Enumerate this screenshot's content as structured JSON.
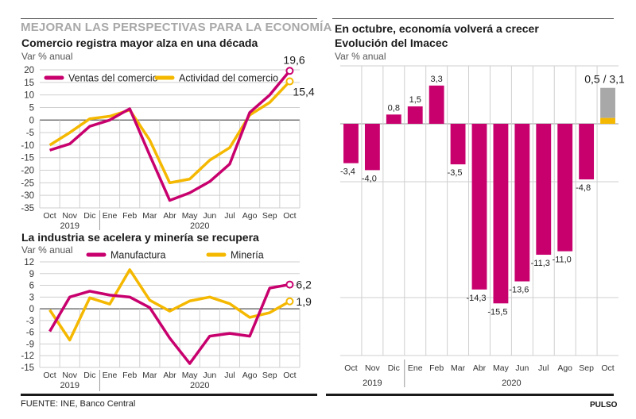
{
  "header": {
    "supertitle": "MEJORAN LAS PERSPECTIVAS PARA LA ECONOMÍA"
  },
  "footer": {
    "source": "FUENTE: INE, Banco Central",
    "brand": "PULSO"
  },
  "colors": {
    "magenta": "#c8006e",
    "yellow": "#f5b800",
    "gray": "#a8a8a8",
    "grid": "#cfcfcf"
  },
  "chart_data": [
    {
      "id": "comercio",
      "type": "line",
      "title": "Comercio registra mayor alza en una década",
      "ylabel": "Var % anual",
      "xlabel": "",
      "categories": [
        "Oct",
        "Nov",
        "Dic",
        "Ene",
        "Feb",
        "Mar",
        "Abr",
        "May",
        "Jun",
        "Jul",
        "Ago",
        "Sep",
        "Oct"
      ],
      "year_labels": [
        {
          "label": "2019",
          "span": [
            0,
            2
          ]
        },
        {
          "label": "2020",
          "span": [
            3,
            12
          ]
        }
      ],
      "ylim": [
        -35,
        20
      ],
      "yticks": [
        20,
        15,
        10,
        5,
        0,
        -5,
        -10,
        -15,
        -20,
        -25,
        -30,
        -35
      ],
      "grid": true,
      "legend": "top-left",
      "series": [
        {
          "name": "Ventas del comercio",
          "color": "#c8006e",
          "values": [
            -12,
            -9.5,
            -2.5,
            0,
            4.5,
            -14,
            -32,
            -29,
            -24.5,
            -17.5,
            3,
            10,
            19.6
          ],
          "end_label": "19,6"
        },
        {
          "name": "Actividad del comercio",
          "color": "#f5b800",
          "values": [
            -10,
            -5,
            0.5,
            1.5,
            4,
            -8,
            -25,
            -23.5,
            -16,
            -11,
            2,
            7,
            15.4
          ],
          "end_label": "15,4"
        }
      ]
    },
    {
      "id": "industria",
      "type": "line",
      "title": "La industria se acelera y minería se recupera",
      "ylabel": "Var % anual",
      "xlabel": "",
      "categories": [
        "Oct",
        "Nov",
        "Dic",
        "Ene",
        "Feb",
        "Mar",
        "Abr",
        "May",
        "Jun",
        "Jul",
        "Ago",
        "Sep",
        "Oct"
      ],
      "year_labels": [
        {
          "label": "2019",
          "span": [
            0,
            2
          ]
        },
        {
          "label": "2020",
          "span": [
            3,
            12
          ]
        }
      ],
      "ylim": [
        -15,
        12
      ],
      "yticks": [
        12,
        9,
        6,
        3,
        0,
        -3,
        -6,
        -9,
        -12,
        -15
      ],
      "grid": true,
      "legend": "top",
      "series": [
        {
          "name": "Manufactura",
          "color": "#c8006e",
          "values": [
            -5.8,
            3,
            4.5,
            3.5,
            3,
            0.3,
            -7.5,
            -14,
            -7,
            -6.3,
            -7,
            5.3,
            6.2
          ],
          "end_label": "6,2"
        },
        {
          "name": "Minería",
          "color": "#f5b800",
          "values": [
            -0.3,
            -8,
            2.8,
            1.2,
            10,
            2.2,
            -0.6,
            2,
            3,
            1.3,
            -2.2,
            -1,
            1.9
          ],
          "end_label": "1,9"
        }
      ]
    },
    {
      "id": "imacec",
      "type": "bar",
      "title": "En octubre, economía volverá a crecer",
      "subtitle": "Evolución del Imacec",
      "ylabel": "Var % anual",
      "xlabel": "",
      "categories": [
        "Oct",
        "Nov",
        "Dic",
        "Ene",
        "Feb",
        "Mar",
        "Abr",
        "May",
        "Jun",
        "Jul",
        "Ago",
        "Sep",
        "Oct"
      ],
      "year_labels": [
        {
          "label": "2019",
          "span": [
            0,
            2
          ]
        },
        {
          "label": "2020",
          "span": [
            3,
            12
          ]
        }
      ],
      "ylim": [
        -20,
        5
      ],
      "gridlines": [
        5,
        0,
        -5,
        -15,
        -20
      ],
      "grid": true,
      "values": [
        -3.4,
        -4.0,
        0.8,
        1.5,
        3.3,
        -3.5,
        -14.3,
        -15.5,
        -13.6,
        -11.3,
        -11.0,
        -4.8,
        null
      ],
      "value_labels": [
        "-3,4",
        "-4,0",
        "0,8",
        "1,5",
        "3,3",
        "-3,5",
        "-14,3",
        "-15,5",
        "-13,6",
        "-11,3",
        "-11,0",
        "-4,8",
        ""
      ],
      "forecast": {
        "category": "Oct",
        "low": 0.5,
        "high": 3.1,
        "label": "0,5 / 3,1",
        "low_color": "#f5b800",
        "range_color": "#a8a8a8"
      }
    }
  ]
}
